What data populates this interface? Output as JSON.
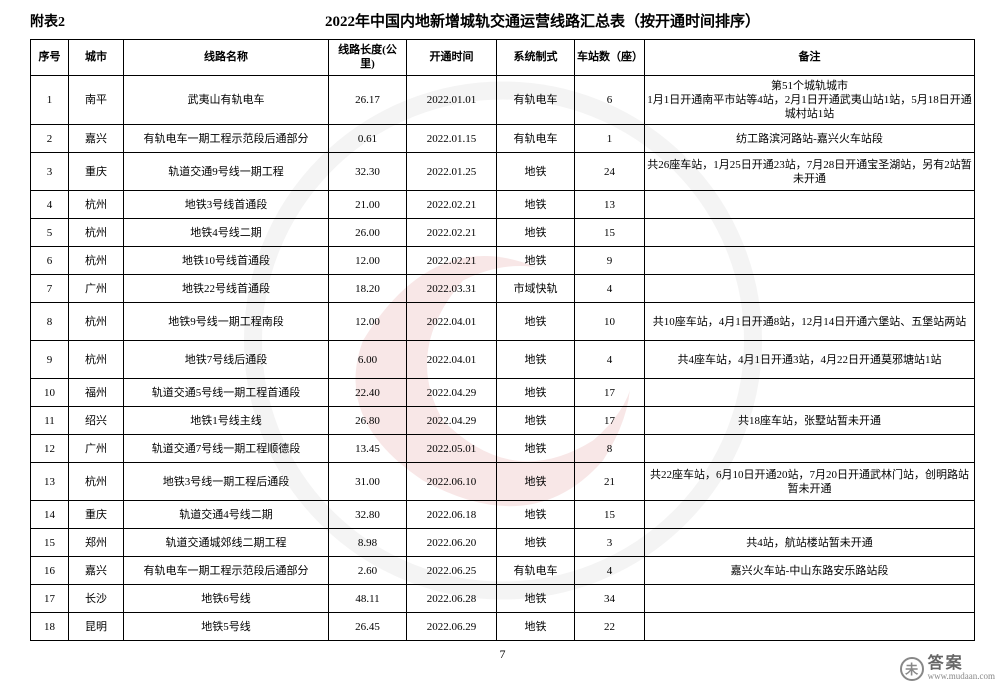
{
  "appendix_label": "附表2",
  "title": "2022年中国内地新增城轨交通运营线路汇总表（按开通时间排序）",
  "page_number": "7",
  "table": {
    "headers": {
      "seq": "序号",
      "city": "城市",
      "name": "线路名称",
      "length": "线路长度(公里)",
      "date": "开通时间",
      "system": "系统制式",
      "stations": "车站数（座）",
      "remark": "备注"
    },
    "rows": [
      {
        "seq": "1",
        "city": "南平",
        "name": "武夷山有轨电车",
        "length": "26.17",
        "date": "2022.01.01",
        "system": "有轨电车",
        "stations": "6",
        "remark": "第51个城轨城市\n1月1日开通南平市站等4站，2月1日开通武夷山站1站，5月18日开通城村站1站",
        "tall": true
      },
      {
        "seq": "2",
        "city": "嘉兴",
        "name": "有轨电车一期工程示范段后通部分",
        "length": "0.61",
        "date": "2022.01.15",
        "system": "有轨电车",
        "stations": "1",
        "remark": "纺工路滨河路站-嘉兴火车站段"
      },
      {
        "seq": "3",
        "city": "重庆",
        "name": "轨道交通9号线一期工程",
        "length": "32.30",
        "date": "2022.01.25",
        "system": "地铁",
        "stations": "24",
        "remark": "共26座车站，1月25日开通23站，7月28日开通宝圣湖站，另有2站暂未开通",
        "tall": true
      },
      {
        "seq": "4",
        "city": "杭州",
        "name": "地铁3号线首通段",
        "length": "21.00",
        "date": "2022.02.21",
        "system": "地铁",
        "stations": "13",
        "remark": ""
      },
      {
        "seq": "5",
        "city": "杭州",
        "name": "地铁4号线二期",
        "length": "26.00",
        "date": "2022.02.21",
        "system": "地铁",
        "stations": "15",
        "remark": ""
      },
      {
        "seq": "6",
        "city": "杭州",
        "name": "地铁10号线首通段",
        "length": "12.00",
        "date": "2022.02.21",
        "system": "地铁",
        "stations": "9",
        "remark": ""
      },
      {
        "seq": "7",
        "city": "广州",
        "name": "地铁22号线首通段",
        "length": "18.20",
        "date": "2022.03.31",
        "system": "市域快轨",
        "stations": "4",
        "remark": ""
      },
      {
        "seq": "8",
        "city": "杭州",
        "name": "地铁9号线一期工程南段",
        "length": "12.00",
        "date": "2022.04.01",
        "system": "地铁",
        "stations": "10",
        "remark": "共10座车站，4月1日开通8站，12月14日开通六堡站、五堡站两站",
        "tall": true
      },
      {
        "seq": "9",
        "city": "杭州",
        "name": "地铁7号线后通段",
        "length": "6.00",
        "date": "2022.04.01",
        "system": "地铁",
        "stations": "4",
        "remark": "共4座车站，4月1日开通3站，4月22日开通莫邪塘站1站",
        "tall": true
      },
      {
        "seq": "10",
        "city": "福州",
        "name": "轨道交通5号线一期工程首通段",
        "length": "22.40",
        "date": "2022.04.29",
        "system": "地铁",
        "stations": "17",
        "remark": ""
      },
      {
        "seq": "11",
        "city": "绍兴",
        "name": "地铁1号线主线",
        "length": "26.80",
        "date": "2022.04.29",
        "system": "地铁",
        "stations": "17",
        "remark": "共18座车站，张墅站暂未开通"
      },
      {
        "seq": "12",
        "city": "广州",
        "name": "轨道交通7号线一期工程顺德段",
        "length": "13.45",
        "date": "2022.05.01",
        "system": "地铁",
        "stations": "8",
        "remark": ""
      },
      {
        "seq": "13",
        "city": "杭州",
        "name": "地铁3号线一期工程后通段",
        "length": "31.00",
        "date": "2022.06.10",
        "system": "地铁",
        "stations": "21",
        "remark": "共22座车站，6月10日开通20站，7月20日开通武林门站，创明路站暂未开通",
        "tall": true
      },
      {
        "seq": "14",
        "city": "重庆",
        "name": "轨道交通4号线二期",
        "length": "32.80",
        "date": "2022.06.18",
        "system": "地铁",
        "stations": "15",
        "remark": ""
      },
      {
        "seq": "15",
        "city": "郑州",
        "name": "轨道交通城郊线二期工程",
        "length": "8.98",
        "date": "2022.06.20",
        "system": "地铁",
        "stations": "3",
        "remark": "共4站，航站楼站暂未开通"
      },
      {
        "seq": "16",
        "city": "嘉兴",
        "name": "有轨电车一期工程示范段后通部分",
        "length": "2.60",
        "date": "2022.06.25",
        "system": "有轨电车",
        "stations": "4",
        "remark": "嘉兴火车站-中山东路安乐路站段"
      },
      {
        "seq": "17",
        "city": "长沙",
        "name": "地铁6号线",
        "length": "48.11",
        "date": "2022.06.28",
        "system": "地铁",
        "stations": "34",
        "remark": ""
      },
      {
        "seq": "18",
        "city": "昆明",
        "name": "地铁5号线",
        "length": "26.45",
        "date": "2022.06.29",
        "system": "地铁",
        "stations": "22",
        "remark": ""
      }
    ]
  },
  "watermark": {
    "outer_color": "#b8b8b8",
    "inner_color": "#c94545"
  },
  "footer": {
    "icon_text": "未",
    "text_cn": "答案",
    "url": "www.mudaan.com"
  }
}
